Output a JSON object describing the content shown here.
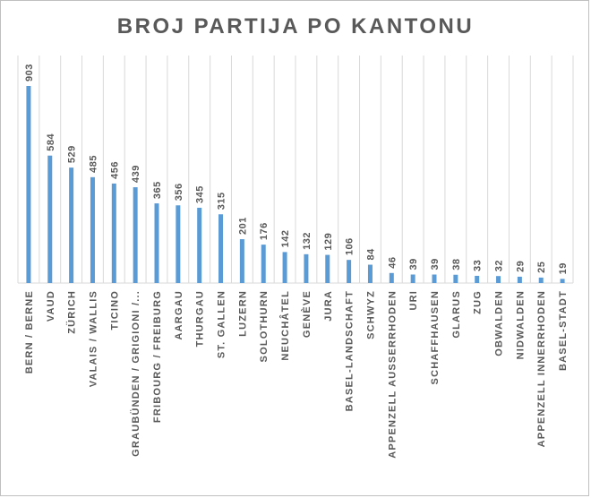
{
  "chart_data": {
    "type": "bar",
    "title": "BROJ PARTIJA  PO KANTONU",
    "xlabel": "",
    "ylabel": "",
    "grid": true,
    "color": "#5b9bd5",
    "categories": [
      "BERN / BERNE",
      "VAUD",
      "ZÜRICH",
      "VALAIS / WALLIS",
      "TICINO",
      "GRAUBÜNDEN / GRIGIONI /...",
      "FRIBOURG / FREIBURG",
      "AARGAU",
      "THURGAU",
      "ST. GALLEN",
      "LUZERN",
      "SOLOTHURN",
      "NEUCHÂTEL",
      "GENÈVE",
      "JURA",
      "BASEL-LANDSCHAFT",
      "SCHWYZ",
      "APPENZELL AUSSERRHODEN",
      "URI",
      "SCHAFFHAUSEN",
      "GLARUS",
      "ZUG",
      "OBWALDEN",
      "NIDWALDEN",
      "APPENZELL INNERRHODEN",
      "BASEL-STADT"
    ],
    "values": [
      903,
      584,
      529,
      485,
      456,
      439,
      365,
      356,
      345,
      315,
      201,
      176,
      142,
      132,
      129,
      106,
      84,
      46,
      39,
      39,
      38,
      33,
      32,
      29,
      25,
      19
    ]
  }
}
